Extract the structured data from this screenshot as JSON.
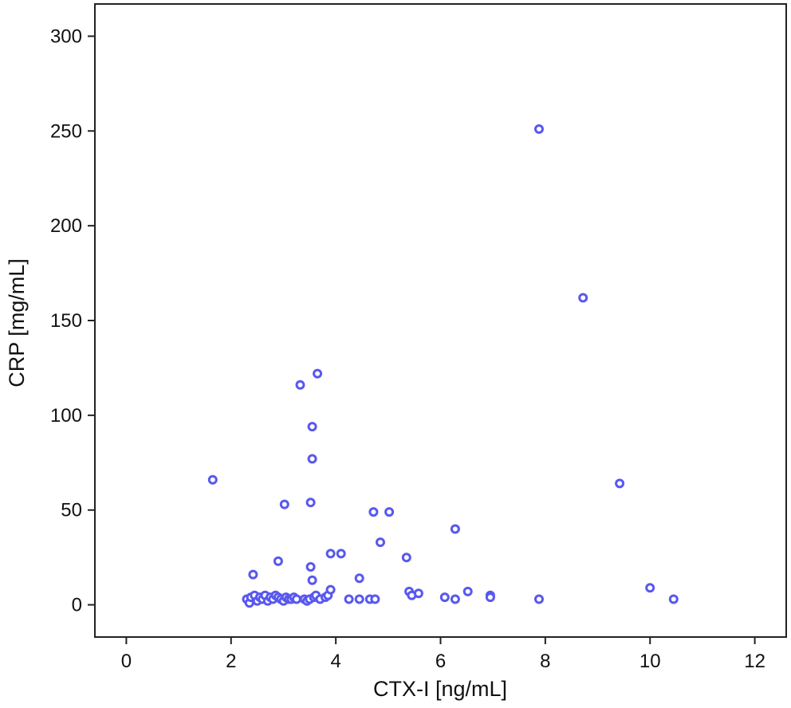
{
  "colors": {
    "point_fill": "#ffffff",
    "point_stroke": "#5858f0",
    "axis": "#222222"
  },
  "chart_data": {
    "type": "scatter",
    "xlabel": "CTX-I [ng/mL]",
    "ylabel": "CRP [mg/mL]",
    "xlim": [
      -0.6,
      12.6
    ],
    "ylim": [
      -17,
      317
    ],
    "xticks": [
      "0",
      "2",
      "4",
      "6",
      "8",
      "10",
      "12"
    ],
    "yticks": [
      "0",
      "50",
      "100",
      "150",
      "200",
      "250",
      "300"
    ],
    "grid": false,
    "legend": "none",
    "series": [
      {
        "marker": "circle",
        "points": [
          [
            1.65,
            66
          ],
          [
            2.42,
            16
          ],
          [
            2.9,
            23
          ],
          [
            3.02,
            53
          ],
          [
            3.32,
            116
          ],
          [
            3.52,
            54
          ],
          [
            3.55,
            94
          ],
          [
            3.55,
            77
          ],
          [
            3.65,
            122
          ],
          [
            3.52,
            20
          ],
          [
            3.55,
            13
          ],
          [
            3.9,
            27
          ],
          [
            4.1,
            27
          ],
          [
            4.45,
            14
          ],
          [
            4.72,
            49
          ],
          [
            4.85,
            33
          ],
          [
            5.02,
            49
          ],
          [
            5.35,
            25
          ],
          [
            6.28,
            40
          ],
          [
            7.88,
            251
          ],
          [
            8.72,
            162
          ],
          [
            9.42,
            64
          ],
          [
            10.0,
            9
          ],
          [
            10.45,
            3
          ],
          [
            2.3,
            3
          ],
          [
            2.35,
            1
          ],
          [
            2.38,
            4
          ],
          [
            2.45,
            5
          ],
          [
            2.5,
            2
          ],
          [
            2.55,
            4
          ],
          [
            2.6,
            3
          ],
          [
            2.65,
            5
          ],
          [
            2.7,
            2
          ],
          [
            2.75,
            4
          ],
          [
            2.8,
            3
          ],
          [
            2.85,
            5
          ],
          [
            2.9,
            4
          ],
          [
            2.95,
            3
          ],
          [
            3.0,
            2
          ],
          [
            3.05,
            4
          ],
          [
            3.1,
            3
          ],
          [
            3.15,
            3
          ],
          [
            3.2,
            4
          ],
          [
            3.25,
            3
          ],
          [
            3.4,
            3
          ],
          [
            3.45,
            2
          ],
          [
            3.5,
            3
          ],
          [
            3.58,
            4
          ],
          [
            3.62,
            5
          ],
          [
            3.7,
            3
          ],
          [
            3.8,
            4
          ],
          [
            3.85,
            5
          ],
          [
            3.9,
            8
          ],
          [
            4.25,
            3
          ],
          [
            4.45,
            3
          ],
          [
            4.65,
            3
          ],
          [
            4.75,
            3
          ],
          [
            5.4,
            7
          ],
          [
            5.45,
            5
          ],
          [
            5.58,
            6
          ],
          [
            6.08,
            4
          ],
          [
            6.28,
            3
          ],
          [
            6.52,
            7
          ],
          [
            6.95,
            5
          ],
          [
            6.95,
            4
          ],
          [
            7.88,
            3
          ]
        ]
      }
    ]
  }
}
